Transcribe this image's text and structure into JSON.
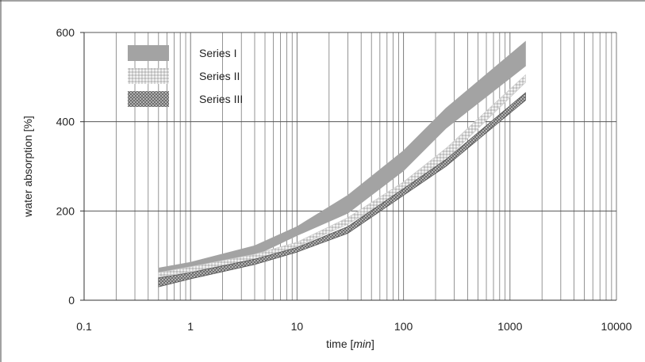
{
  "chart_data": {
    "type": "area",
    "xscale": "log",
    "xlim": [
      0.1,
      10000
    ],
    "ylim": [
      0,
      600
    ],
    "xticks": [
      0.1,
      1,
      10,
      100,
      1000,
      10000
    ],
    "xtick_labels": [
      "0.1",
      "1",
      "10",
      "100",
      "1000",
      "10000"
    ],
    "yticks": [
      0,
      200,
      400,
      600
    ],
    "ytick_labels": [
      "0",
      "200",
      "400",
      "600"
    ],
    "xlabel_prefix": "time [",
    "xlabel_unit": "min",
    "xlabel_suffix": "]",
    "ylabel": "water absorption [%]",
    "grid": {
      "x_minor": true,
      "y_major": true
    },
    "legend_position": "top-left",
    "series": [
      {
        "name": "Series I",
        "fill": "pattern-solid-gray",
        "color": "#a3a3a3",
        "x": [
          0.5,
          1,
          4,
          10,
          30,
          100,
          250,
          1400
        ],
        "lower": [
          62,
          72,
          100,
          145,
          195,
          290,
          385,
          525
        ],
        "upper": [
          72,
          85,
          122,
          165,
          235,
          335,
          430,
          580
        ]
      },
      {
        "name": "Series II",
        "fill": "pattern-light-dots",
        "color": "#cccccc",
        "x": [
          0.5,
          1,
          4,
          10,
          30,
          100,
          250,
          1400
        ],
        "lower": [
          52,
          64,
          90,
          120,
          170,
          245,
          315,
          488
        ],
        "upper": [
          62,
          75,
          103,
          130,
          185,
          265,
          340,
          505
        ]
      },
      {
        "name": "Series III",
        "fill": "pattern-dark-dots",
        "color": "#555555",
        "x": [
          0.5,
          1,
          4,
          10,
          30,
          100,
          250,
          1400
        ],
        "lower": [
          30,
          48,
          80,
          108,
          150,
          235,
          300,
          448
        ],
        "upper": [
          50,
          62,
          92,
          118,
          165,
          250,
          315,
          465
        ]
      }
    ]
  }
}
